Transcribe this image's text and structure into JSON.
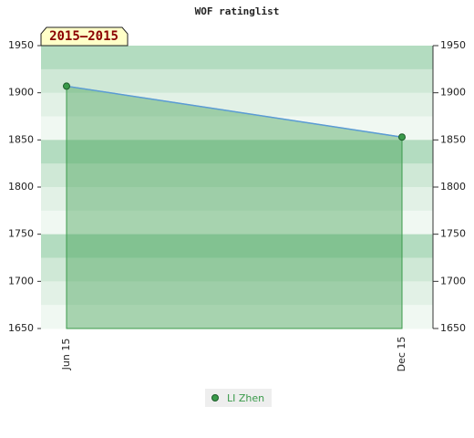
{
  "chart_data": {
    "type": "area",
    "title": "WOF ratinglist",
    "annotation": "2015–2015",
    "categories": [
      "Jun 15",
      "Dec 15"
    ],
    "series": [
      {
        "name": "LI Zhen",
        "color": "#3a9a4a",
        "values": [
          1907,
          1853
        ]
      }
    ],
    "ylim": [
      1650,
      1950
    ],
    "yticks": [
      1650,
      1700,
      1750,
      1800,
      1850,
      1900,
      1950
    ],
    "y2lim": [
      1650,
      1950
    ],
    "y2ticks": [
      1650,
      1700,
      1750,
      1800,
      1850,
      1900,
      1950
    ],
    "line_color": "#5b9bd5"
  }
}
